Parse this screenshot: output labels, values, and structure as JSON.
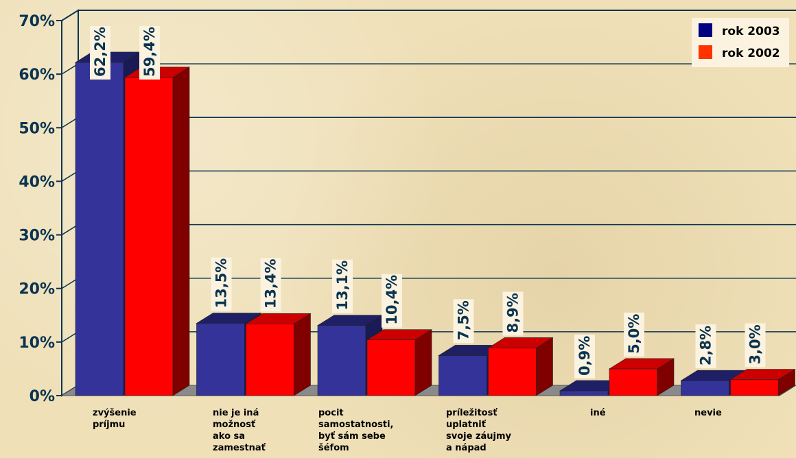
{
  "chart_data": {
    "type": "bar",
    "categories": [
      [
        "zvýšenie",
        "príjmu"
      ],
      [
        "nie je iná",
        "možnosť",
        "ako sa",
        "zamestnať"
      ],
      [
        "pocit",
        "samostatnosti,",
        "byť sám sebe",
        "šéfom"
      ],
      [
        "príležitosť",
        "uplatniť",
        "svoje záujmy",
        "a nápad"
      ],
      [
        "iné"
      ],
      [
        "nevie"
      ]
    ],
    "series": [
      {
        "name": "rok 2003",
        "values": [
          62.2,
          13.5,
          13.1,
          7.5,
          0.9,
          2.8
        ],
        "labels": [
          "62,2%",
          "13,5%",
          "13,1%",
          "7,5%",
          "0,9%",
          "2,8%"
        ],
        "color": "#333399",
        "top_color": "#1f1f66",
        "side_color": "#1a1a55"
      },
      {
        "name": "rok 2002",
        "values": [
          59.4,
          13.4,
          10.4,
          8.9,
          5.0,
          3.0
        ],
        "labels": [
          "59,4%",
          "13,4%",
          "10,4%",
          "8,9%",
          "5,0%",
          "3,0%"
        ],
        "color": "#ff0000",
        "top_color": "#cc0000",
        "side_color": "#800000"
      }
    ],
    "yticks": [
      0,
      10,
      20,
      30,
      40,
      50,
      60,
      70
    ],
    "ytick_labels": [
      "0%",
      "10%",
      "20%",
      "30%",
      "40%",
      "50%",
      "60%",
      "70%"
    ],
    "ylim": [
      0,
      70
    ],
    "grid": true,
    "legend_position": "top-right",
    "legend_colors": [
      "#000080",
      "#ff3300"
    ],
    "axis_color": "#0a3350",
    "floor_color": "#8a8a8a"
  }
}
